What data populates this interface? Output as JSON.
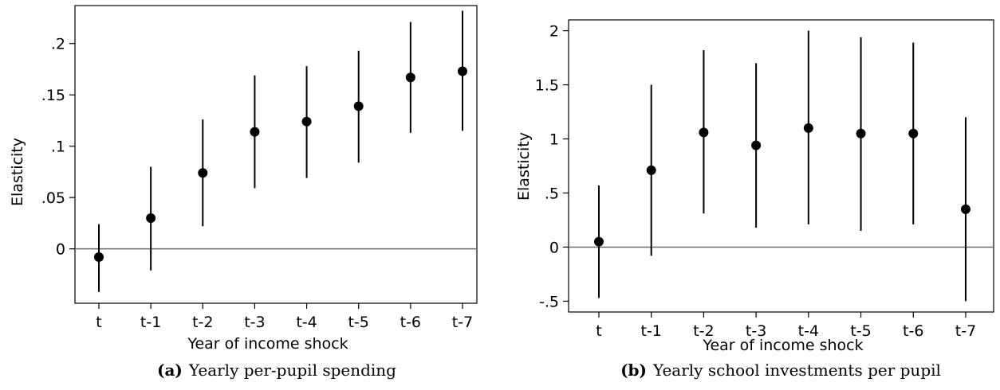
{
  "chart_data": [
    {
      "type": "scatter",
      "subtype": "coefficient plot with confidence intervals",
      "caption_tag": "(a)",
      "caption_text": "Yearly per-pupil spending",
      "xlabel": "Year of income shock",
      "ylabel": "Elasticity",
      "categories": [
        "t",
        "t-1",
        "t-2",
        "t-3",
        "t-4",
        "t-5",
        "t-6",
        "t-7"
      ],
      "estimate": [
        -0.008,
        0.03,
        0.074,
        0.114,
        0.124,
        0.139,
        0.167,
        0.173
      ],
      "ci_low": [
        -0.042,
        -0.021,
        0.022,
        0.059,
        0.069,
        0.084,
        0.113,
        0.115
      ],
      "ci_high": [
        0.024,
        0.08,
        0.126,
        0.169,
        0.178,
        0.193,
        0.221,
        0.232
      ],
      "yticks": [
        0,
        0.05,
        0.1,
        0.15,
        0.2
      ],
      "ytick_labels": [
        "0",
        ".05",
        ".1",
        ".15",
        ".2"
      ],
      "ylim": [
        -0.053,
        0.237
      ],
      "reference_line": 0,
      "grid": false,
      "legend": "none"
    },
    {
      "type": "scatter",
      "subtype": "coefficient plot with confidence intervals",
      "caption_tag": "(b)",
      "caption_text": "Yearly school investments per pupil",
      "xlabel": "Year of income shock",
      "ylabel": "Elasticity",
      "categories": [
        "t",
        "t-1",
        "t-2",
        "t-3",
        "t-4",
        "t-5",
        "t-6",
        "t-7"
      ],
      "estimate": [
        0.05,
        0.71,
        1.06,
        0.94,
        1.1,
        1.05,
        1.05,
        0.35
      ],
      "ci_low": [
        -0.47,
        -0.08,
        0.31,
        0.18,
        0.21,
        0.15,
        0.21,
        -0.5
      ],
      "ci_high": [
        0.57,
        1.5,
        1.82,
        1.7,
        2.0,
        1.94,
        1.89,
        1.2
      ],
      "yticks": [
        -0.5,
        0,
        0.5,
        1,
        1.5,
        2
      ],
      "ytick_labels": [
        "-.5",
        "0",
        ".5",
        "1",
        "1.5",
        "2"
      ],
      "ylim": [
        -0.6,
        2.1
      ],
      "reference_line": 0,
      "grid": false,
      "legend": "none"
    }
  ]
}
